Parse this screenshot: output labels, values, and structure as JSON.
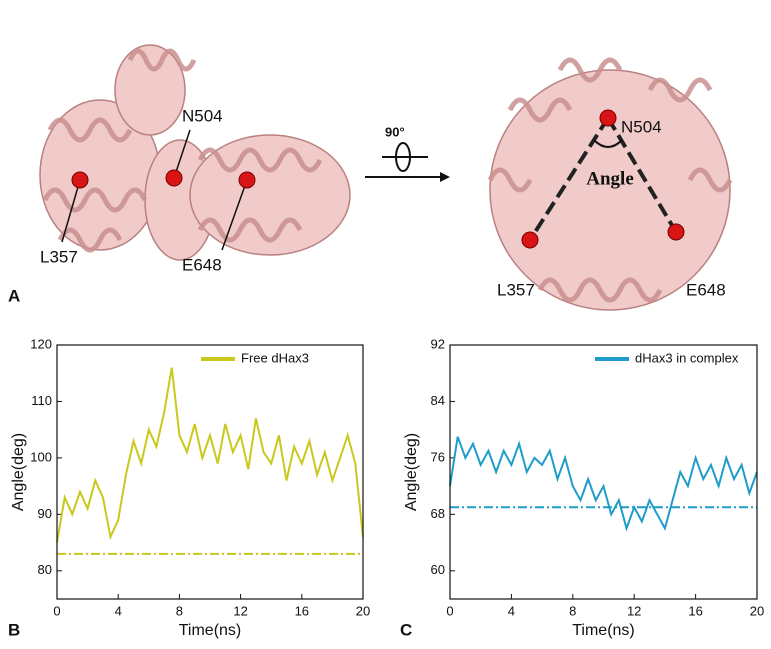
{
  "panel_a": {
    "label": "A",
    "rotation": "90°",
    "angle_label": "Angle",
    "left_residues": [
      "N504",
      "L357",
      "E648"
    ],
    "right_residues": [
      "N504",
      "L357",
      "E648"
    ]
  },
  "chart_data": [
    {
      "type": "line",
      "panel_label": "B",
      "xlabel": "Time(ns)",
      "ylabel": "Angle(deg)",
      "x": [
        0,
        0.5,
        1,
        1.5,
        2,
        2.5,
        3,
        3.5,
        4,
        4.5,
        5,
        5.5,
        6,
        6.5,
        7,
        7.5,
        8,
        8.5,
        9,
        9.5,
        10,
        10.5,
        11,
        11.5,
        12,
        12.5,
        13,
        13.5,
        14,
        14.5,
        15,
        15.5,
        16,
        16.5,
        17,
        17.5,
        18,
        18.5,
        19,
        19.5,
        20
      ],
      "series": [
        {
          "name": "Free dHax3",
          "color": "#c9c81c",
          "values": [
            85,
            93,
            90,
            94,
            91,
            96,
            93,
            86,
            89,
            97,
            103,
            99,
            105,
            102,
            108,
            116,
            104,
            101,
            106,
            100,
            104,
            99,
            106,
            101,
            104,
            98,
            107,
            101,
            99,
            104,
            96,
            102,
            99,
            103,
            97,
            101,
            96,
            100,
            104,
            99,
            86
          ]
        }
      ],
      "reference_line": 83,
      "xlim": [
        0,
        20
      ],
      "xticks": [
        0,
        4,
        8,
        12,
        16,
        20
      ],
      "ylim": [
        75,
        120
      ],
      "yticks": [
        80,
        90,
        100,
        110,
        120
      ],
      "legend": "upper right"
    },
    {
      "type": "line",
      "panel_label": "C",
      "xlabel": "Time(ns)",
      "ylabel": "Angle(deg)",
      "x": [
        0,
        0.5,
        1,
        1.5,
        2,
        2.5,
        3,
        3.5,
        4,
        4.5,
        5,
        5.5,
        6,
        6.5,
        7,
        7.5,
        8,
        8.5,
        9,
        9.5,
        10,
        10.5,
        11,
        11.5,
        12,
        12.5,
        13,
        13.5,
        14,
        14.5,
        15,
        15.5,
        16,
        16.5,
        17,
        17.5,
        18,
        18.5,
        19,
        19.5,
        20
      ],
      "series": [
        {
          "name": "dHax3 in complex",
          "color": "#1f9cc9",
          "values": [
            72,
            79,
            76,
            78,
            75,
            77,
            74,
            77,
            75,
            78,
            74,
            76,
            75,
            77,
            73,
            76,
            72,
            70,
            73,
            70,
            72,
            68,
            70,
            66,
            69,
            67,
            70,
            68,
            66,
            70,
            74,
            72,
            76,
            73,
            75,
            72,
            76,
            73,
            75,
            71,
            74
          ]
        }
      ],
      "reference_line": 69,
      "xlim": [
        0,
        20
      ],
      "xticks": [
        0,
        4,
        8,
        12,
        16,
        20
      ],
      "ylim": [
        56,
        92
      ],
      "yticks": [
        60,
        68,
        76,
        84,
        92
      ],
      "legend": "upper right"
    }
  ]
}
